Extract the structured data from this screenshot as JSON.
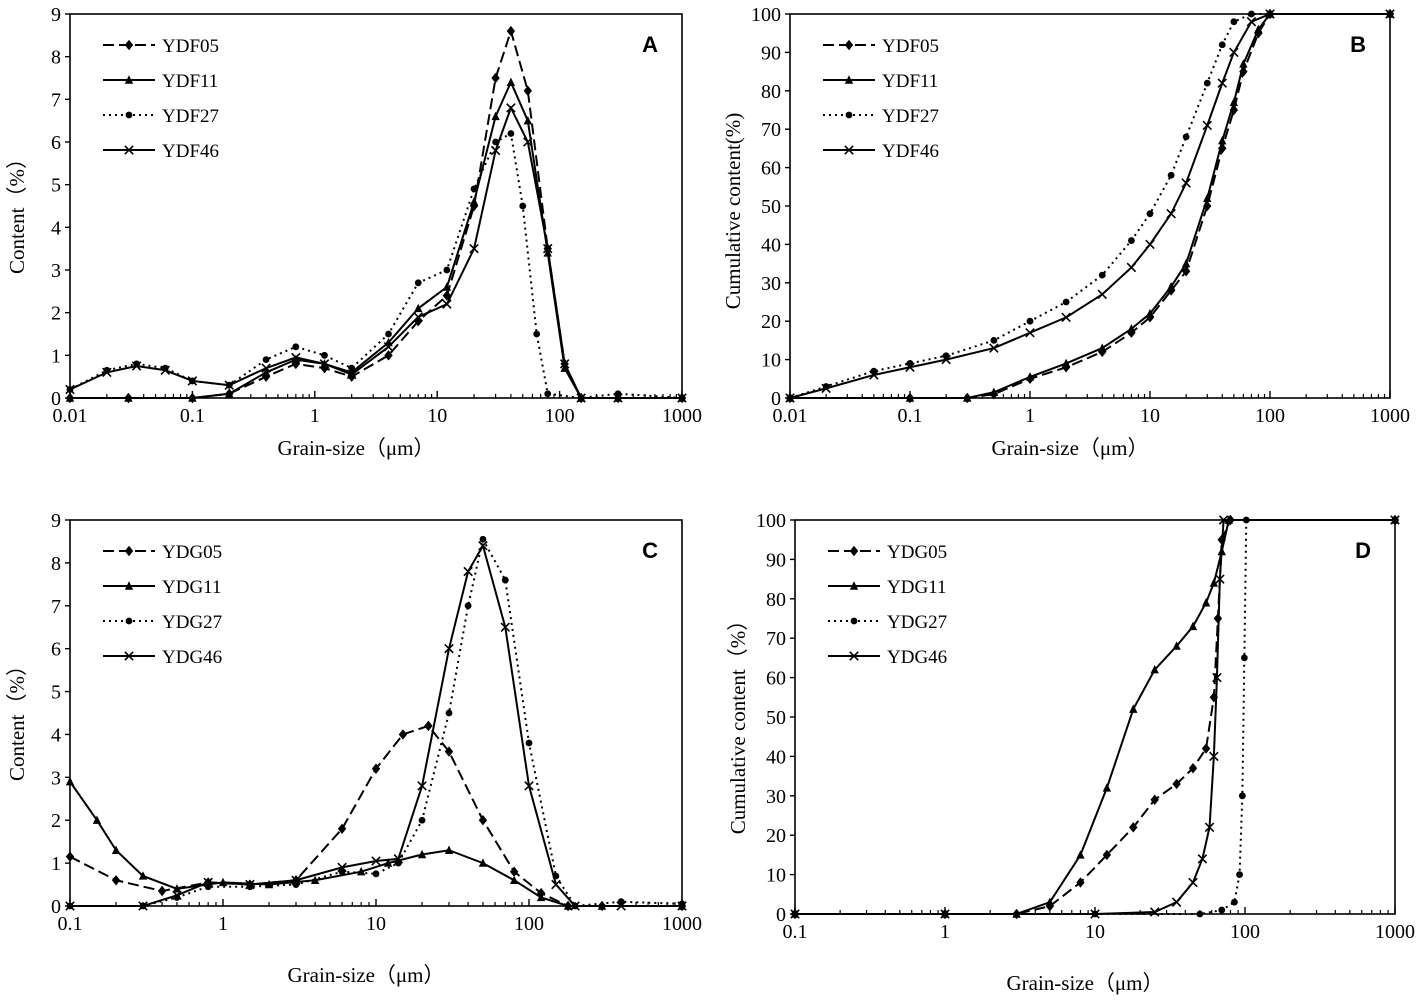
{
  "figure": {
    "description_hidden": false
  },
  "chart_data": [
    {
      "panel": "A",
      "type": "line",
      "xscale": "log",
      "xlim": [
        0.01,
        1000
      ],
      "ylim": [
        0,
        9
      ],
      "xticks": [
        "0.01",
        "0.1",
        "1",
        "10",
        "100",
        "1000"
      ],
      "yticks": [
        "0",
        "1",
        "2",
        "3",
        "4",
        "5",
        "6",
        "7",
        "8",
        "9"
      ],
      "xlabel": "Grain-size（μm）",
      "ylabel": "Content（%）",
      "legend_position": "top-left",
      "series": [
        {
          "name": "YDF05",
          "marker": "diamond",
          "dash": "dashed",
          "x": [
            0.01,
            0.03,
            0.1,
            0.2,
            0.4,
            0.7,
            1.2,
            2,
            4,
            7,
            12,
            20,
            30,
            40,
            55,
            80,
            110,
            150,
            300,
            1000
          ],
          "y": [
            0,
            0,
            0,
            0.1,
            0.5,
            0.8,
            0.7,
            0.5,
            1.0,
            1.8,
            2.4,
            4.5,
            7.5,
            8.6,
            7.2,
            3.5,
            0.8,
            0,
            0,
            0
          ]
        },
        {
          "name": "YDF11",
          "marker": "triangle",
          "dash": "solid",
          "x": [
            0.01,
            0.03,
            0.1,
            0.2,
            0.4,
            0.7,
            1.2,
            2,
            4,
            7,
            12,
            20,
            30,
            40,
            55,
            80,
            110,
            150,
            300,
            1000
          ],
          "y": [
            0,
            0,
            0,
            0.1,
            0.6,
            0.9,
            0.8,
            0.6,
            1.3,
            2.1,
            2.6,
            4.6,
            6.6,
            7.4,
            6.5,
            3.4,
            0.7,
            0,
            0,
            0
          ]
        },
        {
          "name": "YDF27",
          "marker": "circle",
          "dash": "dotted",
          "x": [
            0.01,
            0.02,
            0.035,
            0.06,
            0.1,
            0.2,
            0.4,
            0.7,
            1.2,
            2,
            4,
            7,
            12,
            20,
            30,
            40,
            50,
            65,
            80,
            150,
            300,
            1000
          ],
          "y": [
            0.2,
            0.65,
            0.8,
            0.7,
            0.4,
            0.3,
            0.9,
            1.2,
            1.0,
            0.7,
            1.5,
            2.7,
            3.0,
            4.9,
            6.0,
            6.2,
            4.5,
            1.5,
            0.1,
            0,
            0.1,
            0
          ]
        },
        {
          "name": "YDF46",
          "marker": "x",
          "dash": "solid",
          "x": [
            0.01,
            0.02,
            0.035,
            0.06,
            0.1,
            0.2,
            0.4,
            0.7,
            1.2,
            2,
            4,
            7,
            12,
            20,
            30,
            40,
            55,
            80,
            110,
            150,
            300,
            1000
          ],
          "y": [
            0.2,
            0.6,
            0.75,
            0.65,
            0.4,
            0.3,
            0.7,
            0.95,
            0.8,
            0.55,
            1.2,
            1.9,
            2.2,
            3.5,
            5.8,
            6.8,
            6.0,
            3.5,
            0.8,
            0,
            0,
            0
          ]
        }
      ]
    },
    {
      "panel": "B",
      "type": "line",
      "xscale": "log",
      "xlim": [
        0.01,
        1000
      ],
      "ylim": [
        0,
        100
      ],
      "xticks": [
        "0.01",
        "0.1",
        "1",
        "10",
        "100",
        "1000"
      ],
      "yticks": [
        "0",
        "10",
        "20",
        "30",
        "40",
        "50",
        "60",
        "70",
        "80",
        "90",
        "100"
      ],
      "xlabel": "Grain-size（μm）",
      "ylabel": "Cumulative  content(%)",
      "legend_position": "top-left",
      "series": [
        {
          "name": "YDF05",
          "marker": "diamond",
          "dash": "dashed",
          "x": [
            0.01,
            0.1,
            0.3,
            0.5,
            1,
            2,
            4,
            7,
            10,
            15,
            20,
            30,
            40,
            50,
            60,
            80,
            100,
            1000
          ],
          "y": [
            0,
            0,
            0,
            1,
            5,
            8,
            12,
            17,
            21,
            28,
            33,
            50,
            65,
            75,
            85,
            95,
            100,
            100
          ]
        },
        {
          "name": "YDF11",
          "marker": "triangle",
          "dash": "solid",
          "x": [
            0.01,
            0.1,
            0.3,
            0.5,
            1,
            2,
            4,
            7,
            10,
            15,
            20,
            30,
            40,
            50,
            60,
            80,
            100,
            1000
          ],
          "y": [
            0,
            0,
            0,
            1.5,
            5.5,
            9,
            13,
            18,
            22,
            29,
            35,
            52,
            67,
            77,
            87,
            96,
            100,
            100
          ]
        },
        {
          "name": "YDF27",
          "marker": "circle",
          "dash": "dotted",
          "x": [
            0.01,
            0.02,
            0.05,
            0.1,
            0.2,
            0.5,
            1,
            2,
            4,
            7,
            10,
            15,
            20,
            30,
            40,
            50,
            70,
            100,
            1000
          ],
          "y": [
            0,
            3,
            7,
            9,
            11,
            15,
            20,
            25,
            32,
            41,
            48,
            58,
            68,
            82,
            92,
            98,
            100,
            100,
            100
          ]
        },
        {
          "name": "YDF46",
          "marker": "x",
          "dash": "solid",
          "x": [
            0.01,
            0.02,
            0.05,
            0.1,
            0.2,
            0.5,
            1,
            2,
            4,
            7,
            10,
            15,
            20,
            30,
            40,
            50,
            70,
            100,
            1000
          ],
          "y": [
            0,
            2.5,
            6,
            8,
            10,
            13,
            17,
            21,
            27,
            34,
            40,
            48,
            56,
            71,
            82,
            90,
            98,
            100,
            100
          ]
        }
      ]
    },
    {
      "panel": "C",
      "type": "line",
      "xscale": "log",
      "xlim": [
        0.1,
        1000
      ],
      "ylim": [
        0,
        9
      ],
      "xticks": [
        "0.1",
        "1",
        "10",
        "100",
        "1000"
      ],
      "yticks": [
        "0",
        "1",
        "2",
        "3",
        "4",
        "5",
        "6",
        "7",
        "8",
        "9"
      ],
      "xlabel": "Grain-size（μm）",
      "ylabel": "Content（%）",
      "legend_position": "top-left",
      "series": [
        {
          "name": "YDG05",
          "marker": "diamond",
          "dash": "dashed",
          "x": [
            0.1,
            0.2,
            0.4,
            0.8,
            1.5,
            3,
            6,
            10,
            15,
            22,
            30,
            50,
            80,
            120,
            180,
            300,
            1000
          ],
          "y": [
            1.15,
            0.6,
            0.35,
            0.55,
            0.5,
            0.6,
            1.8,
            3.2,
            4.0,
            4.2,
            3.6,
            2.0,
            0.8,
            0.3,
            0,
            0,
            0
          ]
        },
        {
          "name": "YDG11",
          "marker": "triangle",
          "dash": "solid",
          "x": [
            0.1,
            0.15,
            0.2,
            0.3,
            0.5,
            1,
            2,
            4,
            8,
            12,
            20,
            30,
            50,
            80,
            120,
            180,
            300,
            1000
          ],
          "y": [
            2.9,
            2.0,
            1.3,
            0.7,
            0.4,
            0.55,
            0.5,
            0.6,
            0.8,
            1.0,
            1.2,
            1.3,
            1.0,
            0.6,
            0.2,
            0,
            0,
            0
          ]
        },
        {
          "name": "YDG27",
          "marker": "circle",
          "dash": "dotted",
          "x": [
            0.1,
            0.3,
            0.5,
            0.8,
            1.5,
            3,
            6,
            10,
            14,
            20,
            30,
            40,
            50,
            70,
            100,
            150,
            200,
            400,
            1000
          ],
          "y": [
            0,
            0,
            0.2,
            0.45,
            0.45,
            0.5,
            0.8,
            0.75,
            1.0,
            2.0,
            4.5,
            7.0,
            8.55,
            7.6,
            3.8,
            0.7,
            0,
            0.1,
            0.05
          ]
        },
        {
          "name": "YDG46",
          "marker": "x",
          "dash": "solid",
          "x": [
            0.1,
            0.3,
            0.5,
            0.8,
            1.5,
            3,
            6,
            10,
            14,
            20,
            30,
            40,
            50,
            70,
            100,
            150,
            200,
            400,
            1000
          ],
          "y": [
            0,
            0,
            0.25,
            0.55,
            0.5,
            0.6,
            0.9,
            1.05,
            1.1,
            2.8,
            6.0,
            7.8,
            8.4,
            6.5,
            2.8,
            0.5,
            0,
            0,
            0
          ]
        }
      ]
    },
    {
      "panel": "D",
      "type": "line",
      "xscale": "log",
      "xlim": [
        0.1,
        1000
      ],
      "ylim": [
        0,
        100
      ],
      "xticks": [
        "0.1",
        "1",
        "10",
        "100",
        "1000"
      ],
      "yticks": [
        "0",
        "10",
        "20",
        "30",
        "40",
        "50",
        "60",
        "70",
        "80",
        "90",
        "100"
      ],
      "xlabel": "Grain-size（μm）",
      "ylabel": "Cumulative content（%）",
      "legend_position": "top-left",
      "series": [
        {
          "name": "YDG05",
          "marker": "diamond",
          "dash": "dashed",
          "x": [
            0.1,
            1,
            3,
            5,
            8,
            12,
            18,
            25,
            35,
            45,
            55,
            62,
            66,
            70,
            80,
            1000
          ],
          "y": [
            0,
            0,
            0,
            2,
            8,
            15,
            22,
            29,
            33,
            37,
            42,
            55,
            75,
            95,
            100,
            100
          ]
        },
        {
          "name": "YDG11",
          "marker": "triangle",
          "dash": "solid",
          "x": [
            0.1,
            1,
            3,
            5,
            8,
            12,
            18,
            25,
            35,
            45,
            55,
            62,
            70,
            78,
            1000
          ],
          "y": [
            0,
            0,
            0,
            3,
            15,
            32,
            52,
            62,
            68,
            73,
            79,
            84,
            92,
            100,
            100
          ]
        },
        {
          "name": "YDG27",
          "marker": "circle",
          "dash": "dotted",
          "x": [
            0.1,
            1,
            10,
            50,
            70,
            85,
            92,
            96,
            99,
            102,
            1000
          ],
          "y": [
            0,
            0,
            0,
            0,
            1,
            3,
            10,
            30,
            65,
            100,
            100
          ]
        },
        {
          "name": "YDG46",
          "marker": "x",
          "dash": "solid",
          "x": [
            0.1,
            1,
            10,
            25,
            35,
            45,
            52,
            58,
            62,
            65,
            68,
            72,
            1000
          ],
          "y": [
            0,
            0,
            0,
            0.5,
            3,
            8,
            14,
            22,
            40,
            60,
            85,
            100,
            100
          ]
        }
      ]
    }
  ]
}
